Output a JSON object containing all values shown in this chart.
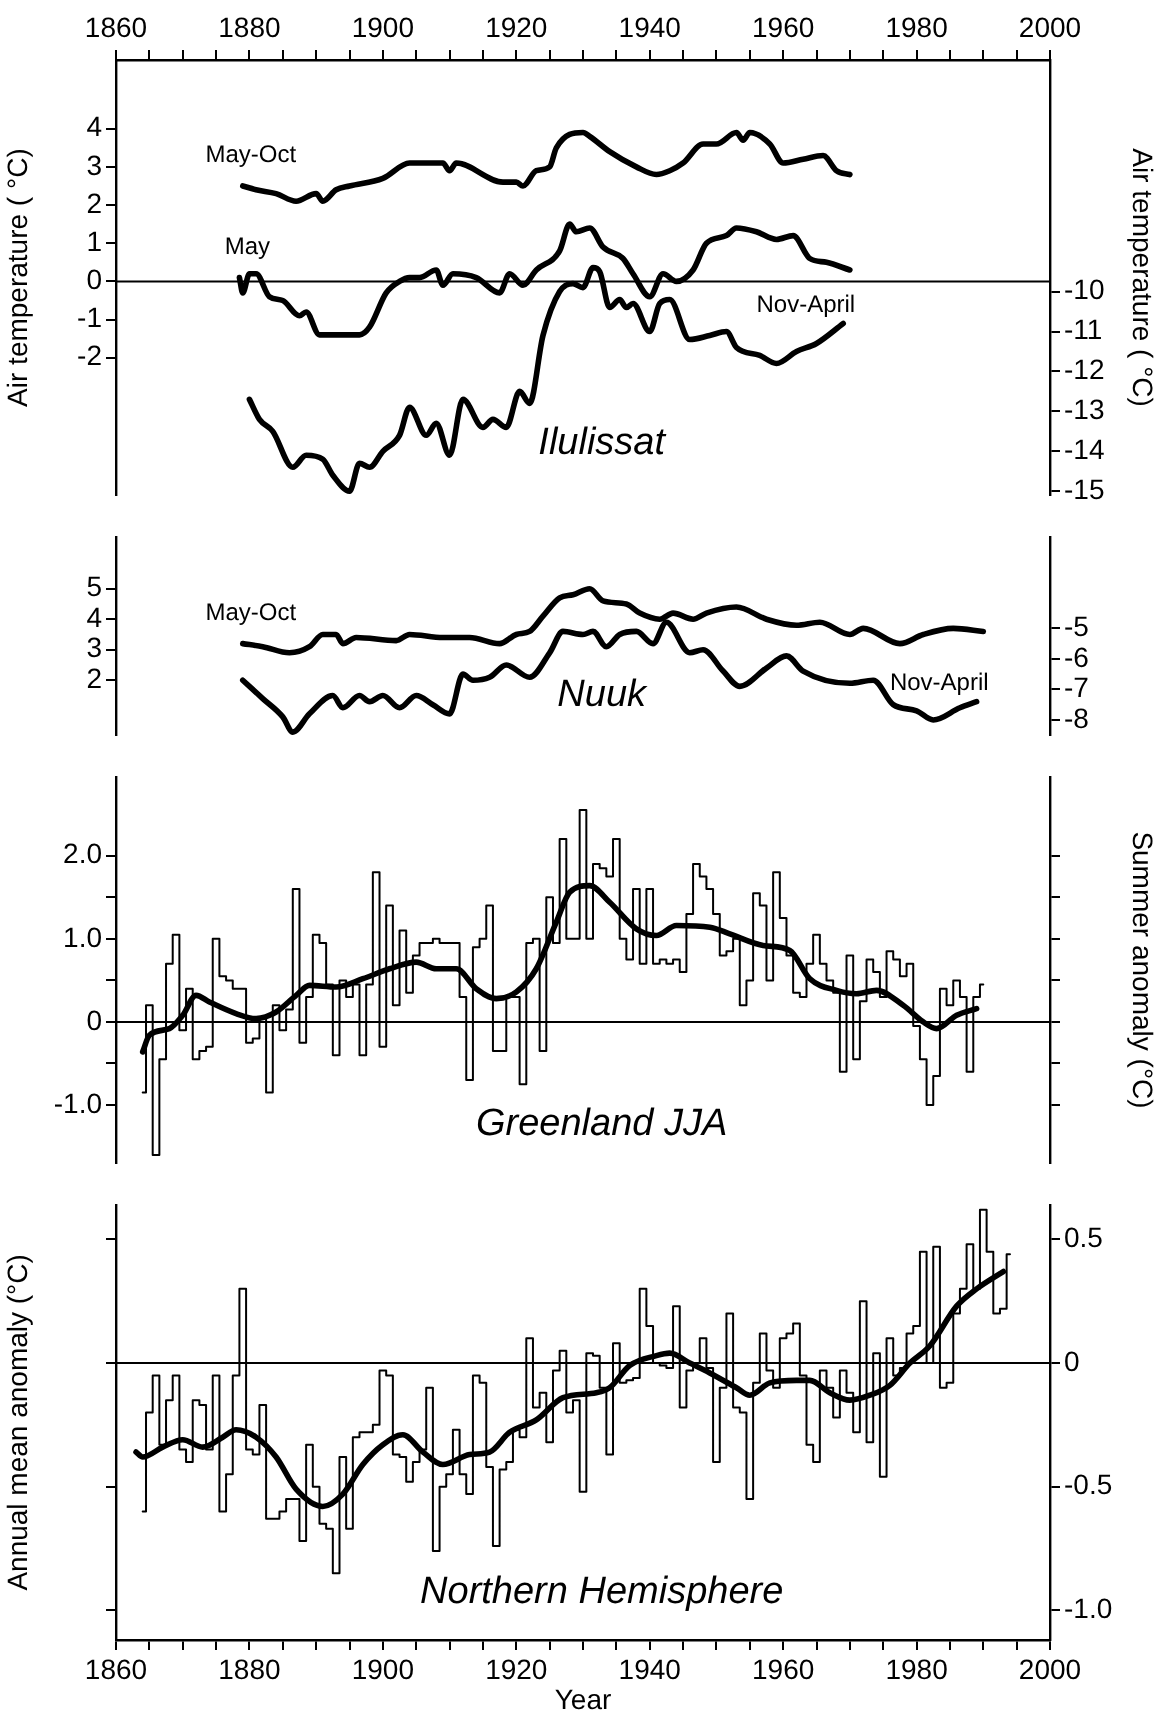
{
  "chart_data": [
    {
      "type": "line",
      "title": "Ilulissat",
      "ylabel": "Air temperature ( °C)",
      "y2label": "Air temperature ( °C)",
      "xlim": [
        1860,
        2000
      ],
      "xticks": [
        1860,
        {
          "value": 1865,
          "label": null
        },
        {
          "value": 1870,
          "label": null
        },
        {
          "value": 1875,
          "label": null
        },
        1880,
        {
          "value": 1885,
          "label": null
        },
        {
          "value": 1890,
          "label": null
        },
        {
          "value": 1895,
          "label": null
        },
        1900,
        {
          "value": 1905,
          "label": null
        },
        {
          "value": 1910,
          "label": null
        },
        {
          "value": 1915,
          "label": null
        },
        1920,
        {
          "value": 1925,
          "label": null
        },
        {
          "value": 1930,
          "label": null
        },
        {
          "value": 1935,
          "label": null
        },
        1940,
        {
          "value": 1945,
          "label": null
        },
        {
          "value": 1950,
          "label": null
        },
        {
          "value": 1955,
          "label": null
        },
        1960,
        {
          "value": 1965,
          "label": null
        },
        {
          "value": 1970,
          "label": null
        },
        {
          "value": 1975,
          "label": null
        },
        1980,
        {
          "value": 1985,
          "label": null
        },
        {
          "value": 1990,
          "label": null
        },
        {
          "value": 1995,
          "label": null
        },
        2000
      ],
      "ylim": [
        -5.6,
        5.8
      ],
      "yticks": [
        4,
        3,
        2,
        1,
        0,
        -1,
        -2
      ],
      "y2lim": [
        -15.1,
        -4.2
      ],
      "y2ticks": [
        -10,
        -11,
        -12,
        -13,
        -14,
        -15
      ],
      "grid": false,
      "legend": false,
      "ref_lines": [
        {
          "axis": "y",
          "value": 0
        }
      ],
      "series": [
        {
          "name": "May-Oct",
          "color": "#000000",
          "x": [
            1879,
            1881,
            1884,
            1887,
            1890,
            1891,
            1893,
            1895,
            1900,
            1904,
            1909,
            1910,
            1911,
            1918,
            1920,
            1921,
            1923,
            1925,
            1926,
            1930,
            1931,
            1934,
            1938,
            1941,
            1943,
            1945,
            1948,
            1950,
            1953,
            1954,
            1955,
            1958,
            1960,
            1963,
            1966,
            1968,
            1970
          ],
          "values": [
            2.5,
            2.4,
            2.3,
            2.1,
            2.3,
            2.1,
            2.4,
            2.5,
            2.7,
            3.1,
            3.1,
            2.9,
            3.1,
            2.6,
            2.6,
            2.5,
            2.9,
            3.0,
            3.5,
            3.9,
            3.8,
            3.4,
            3.0,
            2.8,
            2.9,
            3.1,
            3.6,
            3.6,
            3.9,
            3.7,
            3.9,
            3.6,
            3.1,
            3.2,
            3.3,
            2.9,
            2.8
          ]
        },
        {
          "name": "May",
          "color": "#000000",
          "x": [
            1878.5,
            1879,
            1880,
            1881,
            1883,
            1885,
            1887.5,
            1888.5,
            1890.5,
            1893,
            1896.5,
            1898,
            1900.5,
            1902.5,
            1904,
            1905.5,
            1908,
            1909,
            1910.5,
            1914,
            1917.5,
            1919,
            1921,
            1923,
            1926.5,
            1928,
            1929,
            1931,
            1933,
            1936,
            1937.5,
            1940,
            1942,
            1944,
            1946.5,
            1948.5,
            1951.5,
            1953,
            1956,
            1959,
            1961.5,
            1964,
            1966.5,
            1970
          ],
          "values": [
            0.1,
            -0.3,
            0.2,
            0.2,
            -0.4,
            -0.5,
            -0.9,
            -0.8,
            -1.4,
            -1.4,
            -1.4,
            -1.2,
            -0.3,
            0.0,
            0.1,
            0.1,
            0.3,
            -0.1,
            0.2,
            0.1,
            -0.3,
            0.2,
            -0.1,
            0.3,
            0.8,
            1.5,
            1.3,
            1.4,
            0.9,
            0.6,
            0.2,
            -0.4,
            0.2,
            0.0,
            0.3,
            1.0,
            1.2,
            1.4,
            1.3,
            1.1,
            1.2,
            0.6,
            0.5,
            0.3
          ]
        },
        {
          "name": "Nov-April",
          "color": "#000000",
          "axis": "y2",
          "x": [
            1880,
            1881.5,
            1883.5,
            1886.5,
            1888.5,
            1891,
            1892.5,
            1895,
            1896.5,
            1898,
            1900,
            1902.5,
            1904,
            1906.5,
            1908,
            1910,
            1912,
            1915,
            1916.5,
            1918.5,
            1920.5,
            1922,
            1924,
            1926.5,
            1928.5,
            1930,
            1931.5,
            1932.5,
            1934,
            1935.5,
            1936.5,
            1937.5,
            1940,
            1941.5,
            1943,
            1946,
            1949,
            1951.5,
            1953,
            1956.5,
            1959,
            1962,
            1965,
            1969
          ],
          "values": [
            -12.7,
            -13.2,
            -13.5,
            -14.4,
            -14.1,
            -14.2,
            -14.6,
            -15.0,
            -14.3,
            -14.4,
            -14.0,
            -13.6,
            -12.9,
            -13.6,
            -13.3,
            -14.1,
            -12.7,
            -13.4,
            -13.2,
            -13.4,
            -12.5,
            -12.8,
            -11.1,
            -10.0,
            -9.8,
            -9.9,
            -9.4,
            -9.5,
            -10.4,
            -10.2,
            -10.4,
            -10.3,
            -11.0,
            -10.3,
            -10.2,
            -11.2,
            -11.1,
            -11.0,
            -11.4,
            -11.6,
            -11.8,
            -11.5,
            -11.3,
            -10.8
          ]
        }
      ]
    },
    {
      "type": "line",
      "title": "Nuuk",
      "xlim": [
        1860,
        2000
      ],
      "ylim": [
        0.2,
        6.7
      ],
      "yticks": [
        5,
        4,
        3,
        2
      ],
      "y2lim": [
        -8.5,
        -2.0
      ],
      "y2ticks": [
        -5,
        -6,
        -7,
        -8
      ],
      "tick_labels": "y",
      "grid": false,
      "legend": false,
      "series": [
        {
          "name": "May-Oct",
          "color": "#000000",
          "x": [
            1879,
            1882,
            1886,
            1889,
            1891,
            1893,
            1894,
            1896,
            1902,
            1904,
            1909,
            1913,
            1917.5,
            1920,
            1922,
            1924,
            1926.5,
            1928.5,
            1931,
            1933,
            1936.5,
            1938.5,
            1941.5,
            1943.5,
            1946.5,
            1948.5,
            1953,
            1957.5,
            1962,
            1965.5,
            1970,
            1972,
            1977.5,
            1981,
            1985.5,
            1990
          ],
          "values": [
            3.2,
            3.1,
            2.9,
            3.1,
            3.5,
            3.5,
            3.2,
            3.4,
            3.3,
            3.5,
            3.4,
            3.4,
            3.2,
            3.5,
            3.6,
            4.1,
            4.7,
            4.8,
            5.0,
            4.6,
            4.5,
            4.2,
            4.0,
            4.2,
            4.0,
            4.2,
            4.4,
            4.0,
            3.8,
            3.9,
            3.5,
            3.7,
            3.2,
            3.5,
            3.7,
            3.6
          ]
        },
        {
          "name": "Nov-April",
          "color": "#000000",
          "axis": "y2",
          "x": [
            1879,
            1882,
            1885,
            1886.5,
            1889,
            1892.5,
            1894,
            1896.5,
            1898,
            1900,
            1902.5,
            1905,
            1907.5,
            1910,
            1912,
            1913.5,
            1916,
            1918.5,
            1922,
            1925,
            1927,
            1930,
            1931.5,
            1933.5,
            1935.5,
            1938,
            1940.5,
            1942.5,
            1946,
            1948,
            1951,
            1953.5,
            1957.5,
            1960.5,
            1963,
            1970,
            1973.5,
            1976.5,
            1980,
            1982.5,
            1986.5,
            1989
          ],
          "values": [
            -6.7,
            -7.3,
            -7.9,
            -8.4,
            -7.8,
            -7.2,
            -7.6,
            -7.2,
            -7.4,
            -7.2,
            -7.6,
            -7.2,
            -7.5,
            -7.8,
            -6.5,
            -6.7,
            -6.6,
            -6.2,
            -6.6,
            -5.8,
            -5.1,
            -5.2,
            -5.1,
            -5.6,
            -5.2,
            -5.1,
            -5.5,
            -4.8,
            -5.8,
            -5.7,
            -6.4,
            -6.9,
            -6.3,
            -5.9,
            -6.4,
            -6.8,
            -6.7,
            -7.5,
            -7.7,
            -8.0,
            -7.6,
            -7.4
          ]
        }
      ]
    },
    {
      "type": "line",
      "title": "Greenland JJA",
      "y2label": "Summer anomaly (°C)",
      "xlim": [
        1860,
        2000
      ],
      "ylim": [
        -1.7,
        2.95
      ],
      "yticks": [
        {
          "value": 2,
          "label": "2.0"
        },
        {
          "value": 1.5,
          "label": null
        },
        {
          "value": 1,
          "label": "1.0"
        },
        {
          "value": 0.5,
          "label": null
        },
        0,
        {
          "value": -0.5,
          "label": null
        },
        {
          "value": -1,
          "label": "-1.0"
        }
      ],
      "tick_labels": "y",
      "grid": false,
      "legend": false,
      "ref_lines": [
        {
          "axis": "y",
          "value": 0
        }
      ],
      "series": [
        {
          "type": "step",
          "color": "#000000",
          "x": [
            1864,
            1865,
            1866,
            1867,
            1868,
            1869,
            1870,
            1871,
            1872,
            1873,
            1874,
            1875,
            1876,
            1877,
            1878,
            1879,
            1880,
            1881,
            1882,
            1883,
            1884,
            1885,
            1886,
            1887,
            1888,
            1889,
            1890,
            1891,
            1892,
            1893,
            1894,
            1895,
            1896,
            1897,
            1898,
            1899,
            1900,
            1901,
            1902,
            1903,
            1904,
            1905,
            1906,
            1907,
            1908,
            1909,
            1910,
            1911,
            1912,
            1913,
            1914,
            1915,
            1916,
            1917,
            1918,
            1919,
            1920,
            1921,
            1922,
            1923,
            1924,
            1925,
            1926,
            1927,
            1928,
            1929,
            1930,
            1931,
            1932,
            1933,
            1934,
            1935,
            1936,
            1937,
            1938,
            1939,
            1940,
            1941,
            1942,
            1943,
            1944,
            1945,
            1946,
            1947,
            1948,
            1949,
            1950,
            1951,
            1952,
            1953,
            1954,
            1955,
            1956,
            1957,
            1958,
            1959,
            1960,
            1961,
            1962,
            1963,
            1964,
            1965,
            1966,
            1967,
            1968,
            1969,
            1970,
            1971,
            1972,
            1973,
            1974,
            1975,
            1976,
            1977,
            1978,
            1979,
            1980,
            1981,
            1982,
            1983,
            1984,
            1985,
            1986,
            1987,
            1988,
            1989,
            1990
          ],
          "values": [
            -0.85,
            0.2,
            -1.6,
            -0.45,
            0.7,
            1.05,
            -0.1,
            0.4,
            -0.45,
            -0.35,
            -0.3,
            1.0,
            0.55,
            0.5,
            0.4,
            0.4,
            -0.25,
            -0.2,
            0.05,
            -0.85,
            0.2,
            -0.1,
            0.15,
            1.6,
            -0.25,
            0.3,
            1.05,
            0.95,
            0.45,
            -0.4,
            0.5,
            0.3,
            0.45,
            -0.4,
            0.45,
            1.8,
            -0.3,
            1.4,
            0.2,
            1.1,
            0.35,
            0.8,
            0.95,
            0.95,
            1.0,
            0.95,
            0.95,
            0.95,
            0.3,
            -0.7,
            0.9,
            1.0,
            1.4,
            -0.35,
            -0.35,
            0.3,
            0.3,
            -0.75,
            0.95,
            1.0,
            -0.35,
            1.5,
            0.95,
            2.2,
            1.0,
            1.0,
            2.55,
            1.0,
            1.9,
            1.85,
            1.75,
            2.2,
            1.0,
            0.75,
            1.6,
            0.7,
            1.6,
            0.7,
            0.75,
            0.7,
            0.75,
            0.6,
            1.3,
            1.9,
            1.75,
            1.6,
            1.3,
            0.8,
            0.85,
            1.0,
            0.2,
            0.5,
            1.55,
            1.4,
            0.5,
            1.8,
            1.25,
            0.8,
            0.35,
            0.3,
            0.7,
            1.05,
            0.7,
            0.5,
            0.35,
            -0.6,
            0.8,
            -0.45,
            0.25,
            0.75,
            0.6,
            0.3,
            0.85,
            0.75,
            0.55,
            0.7,
            -0.05,
            -0.45,
            -1.0,
            -0.65,
            0.4,
            0.2,
            0.5,
            0.3,
            -0.6,
            0.3,
            0.45
          ]
        },
        {
          "type": "line",
          "color": "#000000",
          "x": [
            1864,
            1865,
            1868,
            1870,
            1872,
            1874,
            1878,
            1881,
            1884,
            1887,
            1889,
            1893,
            1897,
            1901,
            1905,
            1908,
            1911,
            1914,
            1917,
            1920,
            1923,
            1926,
            1928,
            1931,
            1934,
            1938,
            1941,
            1944,
            1949,
            1952,
            1957,
            1961,
            1964,
            1968,
            1971,
            1974,
            1978,
            1981,
            1983,
            1986,
            1989
          ],
          "values": [
            -0.36,
            -0.16,
            -0.08,
            0.08,
            0.32,
            0.24,
            0.1,
            0.04,
            0.12,
            0.32,
            0.44,
            0.42,
            0.52,
            0.64,
            0.72,
            0.64,
            0.64,
            0.4,
            0.28,
            0.36,
            0.64,
            1.2,
            1.56,
            1.64,
            1.44,
            1.12,
            1.04,
            1.16,
            1.14,
            1.06,
            0.92,
            0.86,
            0.52,
            0.38,
            0.34,
            0.38,
            0.2,
            0,
            -0.08,
            0.08,
            0.16
          ]
        }
      ]
    },
    {
      "type": "line",
      "title": "Northern Hemisphere",
      "xlabel": "Year",
      "ylabel": "Annual mean anomaly (°C)",
      "xlim": [
        1860,
        2000
      ],
      "xticks": [
        1860,
        {
          "value": 1865,
          "label": null
        },
        {
          "value": 1870,
          "label": null
        },
        {
          "value": 1875,
          "label": null
        },
        1880,
        {
          "value": 1885,
          "label": null
        },
        {
          "value": 1890,
          "label": null
        },
        {
          "value": 1895,
          "label": null
        },
        1900,
        {
          "value": 1905,
          "label": null
        },
        {
          "value": 1910,
          "label": null
        },
        {
          "value": 1915,
          "label": null
        },
        1920,
        {
          "value": 1925,
          "label": null
        },
        {
          "value": 1930,
          "label": null
        },
        {
          "value": 1935,
          "label": null
        },
        1940,
        {
          "value": 1945,
          "label": null
        },
        {
          "value": 1950,
          "label": null
        },
        {
          "value": 1955,
          "label": null
        },
        1960,
        {
          "value": 1965,
          "label": null
        },
        {
          "value": 1970,
          "label": null
        },
        {
          "value": 1975,
          "label": null
        },
        1980,
        {
          "value": 1985,
          "label": null
        },
        {
          "value": 1990,
          "label": null
        },
        {
          "value": 1995,
          "label": null
        },
        2000
      ],
      "y2lim": [
        -1.12,
        0.64
      ],
      "y2ticks": [
        0.5,
        0,
        -0.5,
        {
          "value": -1,
          "label": "-1.0"
        }
      ],
      "grid": false,
      "legend": false,
      "ref_lines": [
        {
          "axis": "y2",
          "value": 0
        }
      ],
      "series": [
        {
          "type": "step",
          "color": "#000000",
          "axis": "y2",
          "x": [
            1864,
            1865,
            1866,
            1867,
            1868,
            1869,
            1870,
            1871,
            1872,
            1873,
            1874,
            1875,
            1876,
            1877,
            1878,
            1879,
            1880,
            1881,
            1882,
            1883,
            1884,
            1885,
            1886,
            1887,
            1888,
            1889,
            1890,
            1891,
            1892,
            1893,
            1894,
            1895,
            1896,
            1897,
            1898,
            1899,
            1900,
            1901,
            1902,
            1903,
            1904,
            1905,
            1906,
            1907,
            1908,
            1909,
            1910,
            1911,
            1912,
            1913,
            1914,
            1915,
            1916,
            1917,
            1918,
            1919,
            1920,
            1921,
            1922,
            1923,
            1924,
            1925,
            1926,
            1927,
            1928,
            1929,
            1930,
            1931,
            1932,
            1933,
            1934,
            1935,
            1936,
            1937,
            1938,
            1939,
            1940,
            1941,
            1942,
            1943,
            1944,
            1945,
            1946,
            1947,
            1948,
            1949,
            1950,
            1951,
            1952,
            1953,
            1954,
            1955,
            1956,
            1957,
            1958,
            1959,
            1960,
            1961,
            1962,
            1963,
            1964,
            1965,
            1966,
            1967,
            1968,
            1969,
            1970,
            1971,
            1972,
            1973,
            1974,
            1975,
            1976,
            1977,
            1978,
            1979,
            1980,
            1981,
            1982,
            1983,
            1984,
            1985,
            1986,
            1987,
            1988,
            1989,
            1990,
            1991,
            1992,
            1993,
            1994
          ],
          "values": [
            -0.6,
            -0.2,
            -0.05,
            -0.33,
            -0.15,
            -0.05,
            -0.35,
            -0.4,
            -0.15,
            -0.17,
            -0.35,
            -0.05,
            -0.6,
            -0.45,
            -0.05,
            0.3,
            -0.35,
            -0.37,
            -0.17,
            -0.63,
            -0.63,
            -0.6,
            -0.55,
            -0.55,
            -0.72,
            -0.33,
            -0.5,
            -0.65,
            -0.67,
            -0.85,
            -0.38,
            -0.67,
            -0.3,
            -0.28,
            -0.28,
            -0.25,
            -0.03,
            -0.05,
            -0.37,
            -0.38,
            -0.48,
            -0.4,
            -0.35,
            -0.1,
            -0.76,
            -0.5,
            -0.45,
            -0.27,
            -0.45,
            -0.53,
            -0.05,
            -0.08,
            -0.42,
            -0.74,
            -0.43,
            -0.4,
            -0.27,
            -0.3,
            0.1,
            -0.18,
            -0.12,
            -0.32,
            -0.03,
            0.05,
            -0.2,
            -0.15,
            -0.52,
            0.04,
            0.03,
            -0.1,
            -0.37,
            0.08,
            -0.08,
            -0.07,
            -0.06,
            0.3,
            0.15,
            0,
            -0.01,
            -0.02,
            0.23,
            -0.18,
            -0.03,
            0,
            0.1,
            -0.02,
            -0.4,
            -0.1,
            0.2,
            -0.18,
            -0.2,
            -0.55,
            -0.08,
            0.12,
            -0.03,
            -0.1,
            0.1,
            0.12,
            0.16,
            -0.05,
            -0.33,
            -0.4,
            -0.03,
            -0.1,
            -0.22,
            -0.03,
            -0.12,
            -0.28,
            0.25,
            -0.32,
            0.04,
            -0.46,
            0.1,
            -0.05,
            -0.02,
            0.12,
            0.15,
            0.45,
            0,
            0.47,
            -0.1,
            -0.08,
            0.2,
            0.3,
            0.48,
            0.3,
            0.62,
            0.45,
            0.2,
            0.22,
            0.44
          ]
        },
        {
          "type": "line",
          "color": "#000000",
          "axis": "y2",
          "x": [
            1863,
            1864,
            1867,
            1870,
            1873,
            1876,
            1878,
            1881,
            1884,
            1887,
            1891,
            1894,
            1897,
            1900,
            1903,
            1906,
            1909,
            1913,
            1916,
            1919,
            1923,
            1927,
            1932,
            1934,
            1937,
            1941,
            1943,
            1946,
            1949,
            1953,
            1955,
            1958,
            1962,
            1964,
            1967,
            1970,
            1973,
            1976,
            1979,
            1982,
            1986,
            1989,
            1993
          ],
          "values": [
            -0.36,
            -0.38,
            -0.34,
            -0.31,
            -0.34,
            -0.3,
            -0.27,
            -0.3,
            -0.38,
            -0.51,
            -0.58,
            -0.53,
            -0.41,
            -0.33,
            -0.29,
            -0.36,
            -0.41,
            -0.37,
            -0.36,
            -0.28,
            -0.23,
            -0.14,
            -0.12,
            -0.1,
            -0.01,
            0.03,
            0.04,
            0,
            -0.04,
            -0.1,
            -0.13,
            -0.08,
            -0.07,
            -0.07,
            -0.12,
            -0.15,
            -0.13,
            -0.09,
            0,
            0.07,
            0.23,
            0.3,
            0.37
          ]
        }
      ]
    }
  ]
}
